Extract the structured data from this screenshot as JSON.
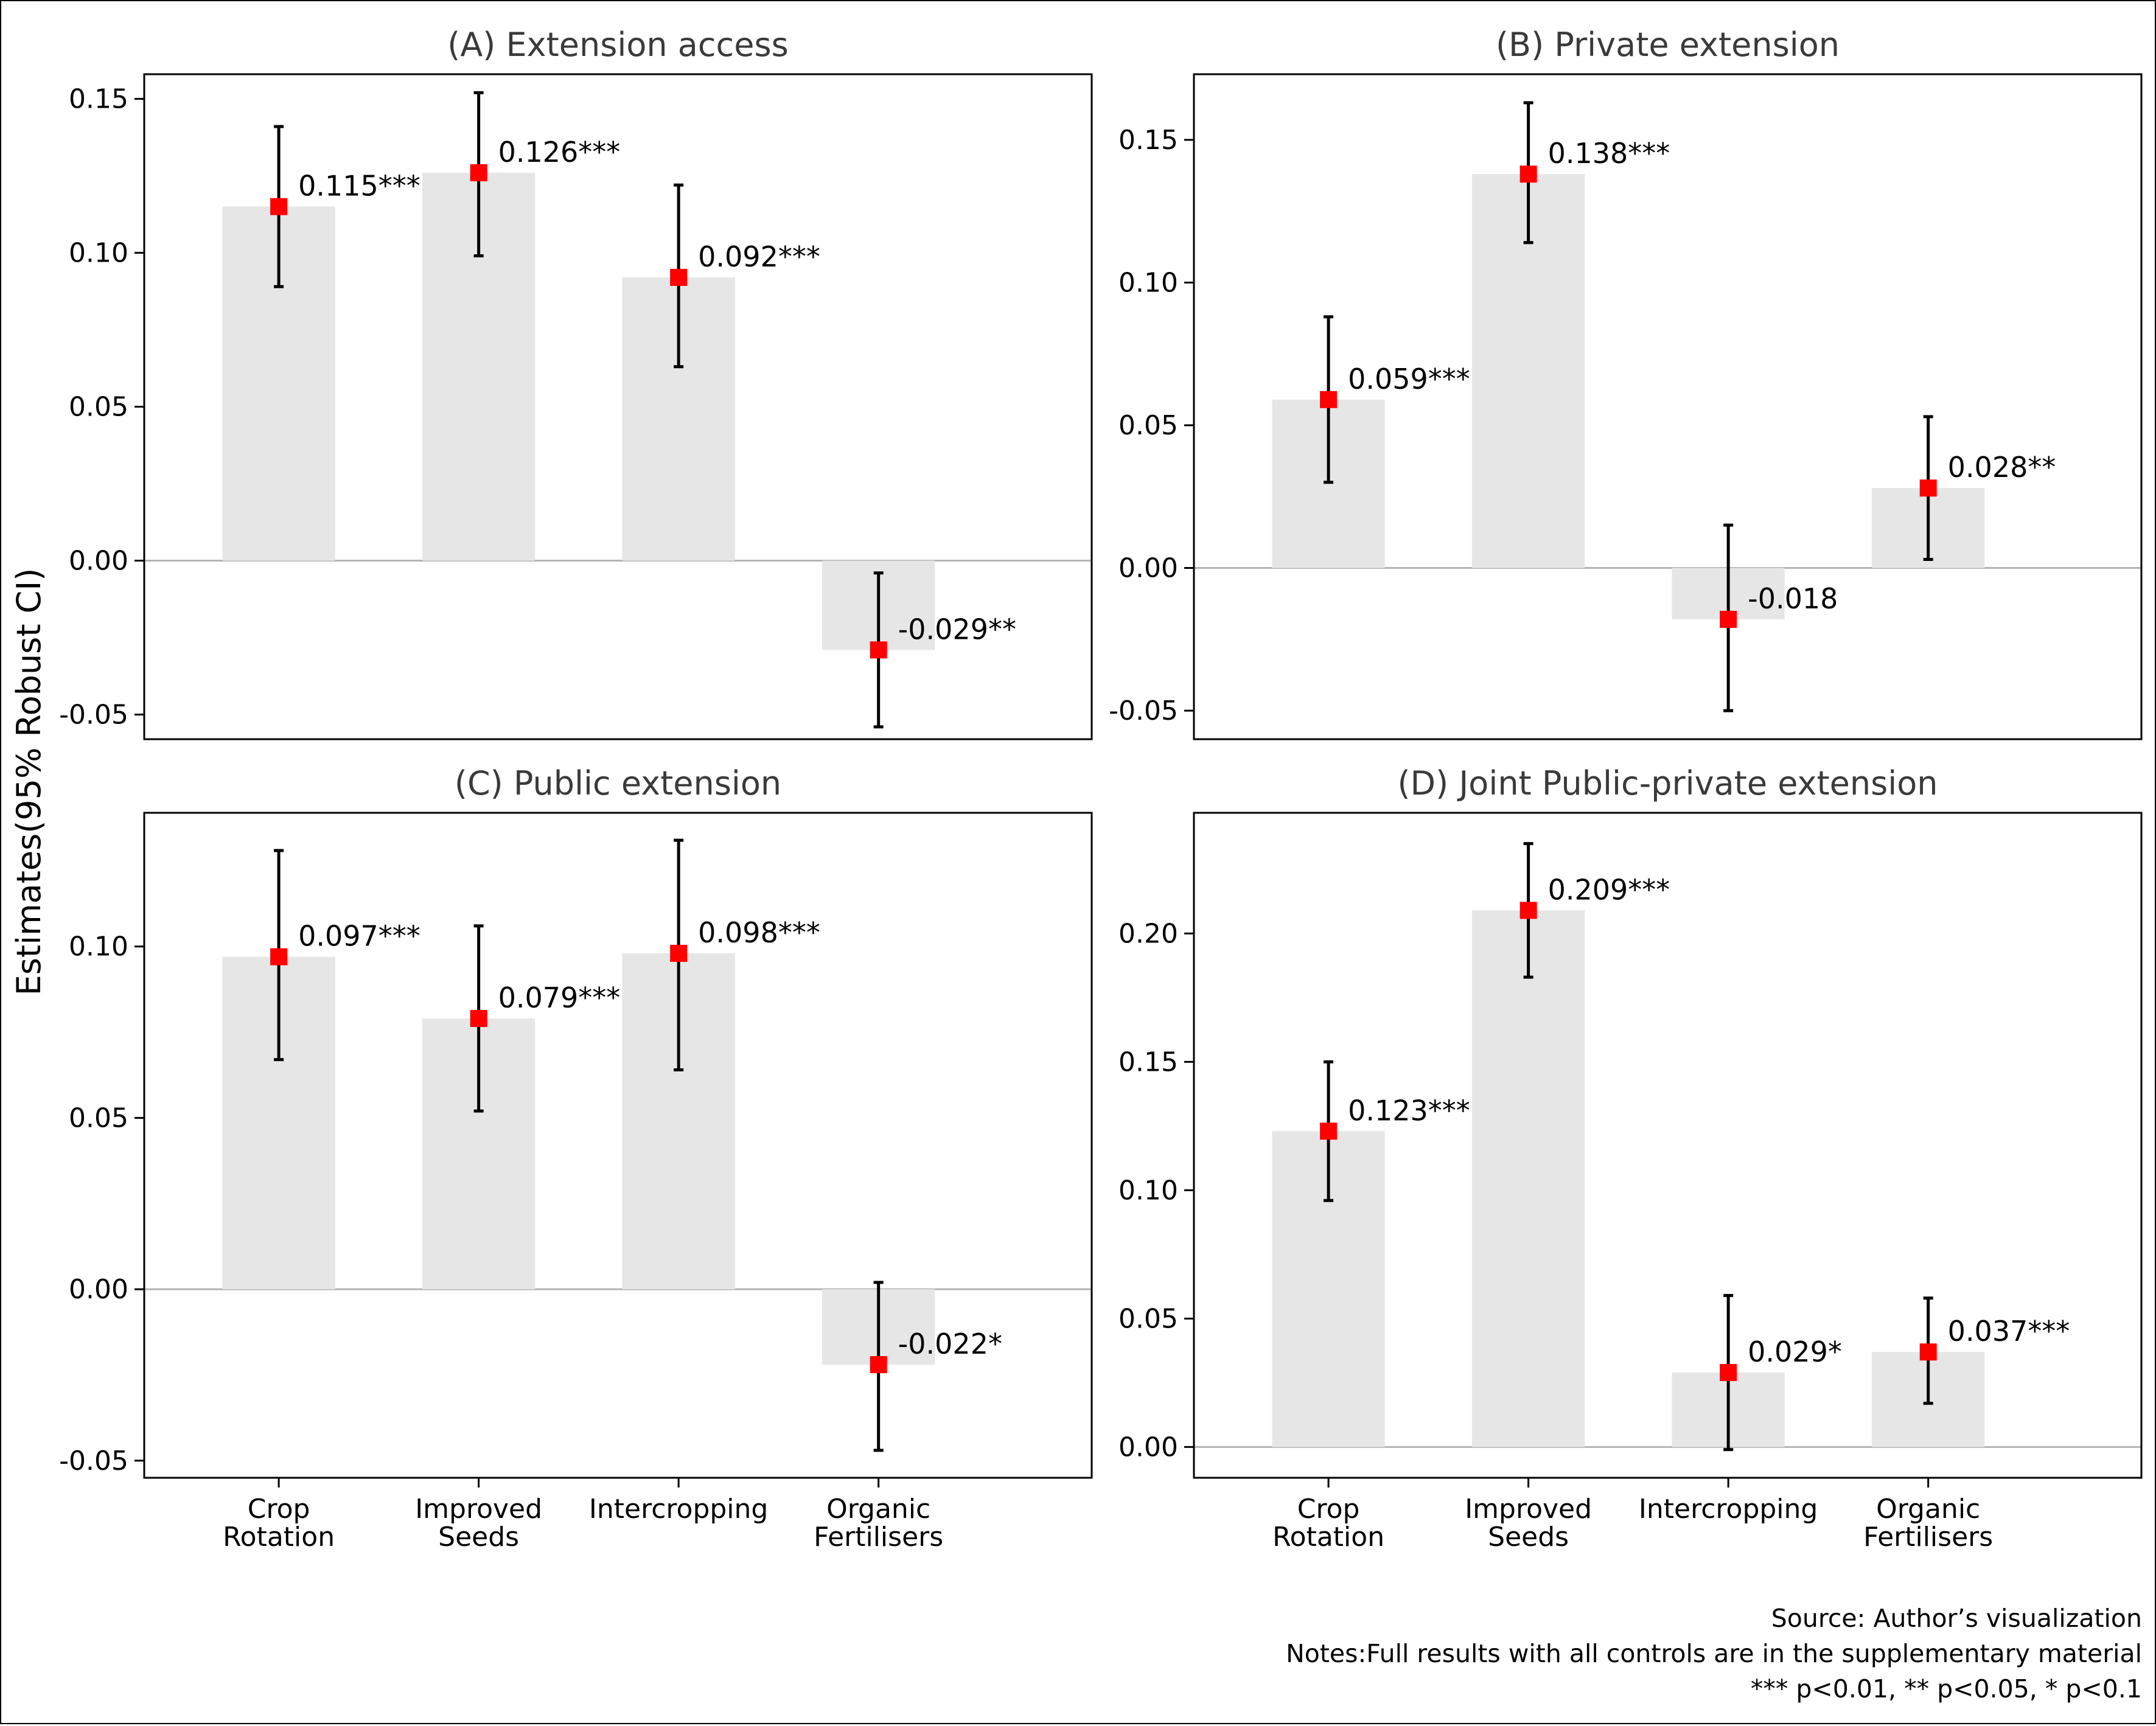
{
  "ylabel": "Estimates(95% Robust CI)",
  "categories": [
    [
      "Crop",
      "Rotation"
    ],
    [
      "Improved",
      "Seeds"
    ],
    [
      "Intercropping"
    ],
    [
      "Organic",
      "Fertilisers"
    ]
  ],
  "notes": [
    "Source: Author’s visualization",
    "Notes:Full results with all controls are in the supplementary material",
    "*** p<0.01, ** p<0.05, * p<0.1"
  ],
  "colors": {
    "bar": "#e6e6e6",
    "point": "#ff0000",
    "errorbar": "#000000",
    "zero_line": "#b3b3b3"
  },
  "chart_data": [
    {
      "type": "bar",
      "title": "(A) Extension access",
      "ylim": [
        -0.058,
        0.158
      ],
      "yticks": [
        -0.05,
        0.0,
        0.05,
        0.1,
        0.15
      ],
      "ytick_labels": [
        "-0.05",
        "0.00",
        "0.05",
        "0.10",
        "0.15"
      ],
      "values": [
        0.115,
        0.126,
        0.092,
        -0.029
      ],
      "ci_low": [
        0.089,
        0.099,
        0.063,
        -0.054
      ],
      "ci_high": [
        0.141,
        0.152,
        0.122,
        -0.004
      ],
      "labels": [
        "0.115***",
        "0.126***",
        "0.092***",
        "-0.029**"
      ]
    },
    {
      "type": "bar",
      "title": "(B) Private extension",
      "ylim": [
        -0.06,
        0.173
      ],
      "yticks": [
        -0.05,
        0.0,
        0.05,
        0.1,
        0.15
      ],
      "ytick_labels": [
        "-0.05",
        "0.00",
        "0.05",
        "0.10",
        "0.15"
      ],
      "values": [
        0.059,
        0.138,
        -0.018,
        0.028
      ],
      "ci_low": [
        0.03,
        0.114,
        -0.05,
        0.003
      ],
      "ci_high": [
        0.088,
        0.163,
        0.015,
        0.053
      ],
      "labels": [
        "0.059***",
        "0.138***",
        "-0.018",
        "0.028**"
      ]
    },
    {
      "type": "bar",
      "title": "(C) Public extension",
      "ylim": [
        -0.055,
        0.139
      ],
      "yticks": [
        -0.05,
        0.0,
        0.05,
        0.1
      ],
      "ytick_labels": [
        "-0.05",
        "0.00",
        "0.05",
        "0.10"
      ],
      "values": [
        0.097,
        0.079,
        0.098,
        -0.022
      ],
      "ci_low": [
        0.067,
        0.052,
        0.064,
        -0.047
      ],
      "ci_high": [
        0.128,
        0.106,
        0.131,
        0.002
      ],
      "labels": [
        "0.097***",
        "0.079***",
        "0.098***",
        "-0.022*"
      ]
    },
    {
      "type": "bar",
      "title": "(D) Joint Public-private extension",
      "ylim": [
        -0.012,
        0.247
      ],
      "yticks": [
        0.0,
        0.05,
        0.1,
        0.15,
        0.2
      ],
      "ytick_labels": [
        "0.00",
        "0.05",
        "0.10",
        "0.15",
        "0.20"
      ],
      "values": [
        0.123,
        0.209,
        0.029,
        0.037
      ],
      "ci_low": [
        0.096,
        0.183,
        -0.001,
        0.017
      ],
      "ci_high": [
        0.15,
        0.235,
        0.059,
        0.058
      ],
      "labels": [
        "0.123***",
        "0.209***",
        "0.029*",
        "0.037***"
      ]
    }
  ]
}
